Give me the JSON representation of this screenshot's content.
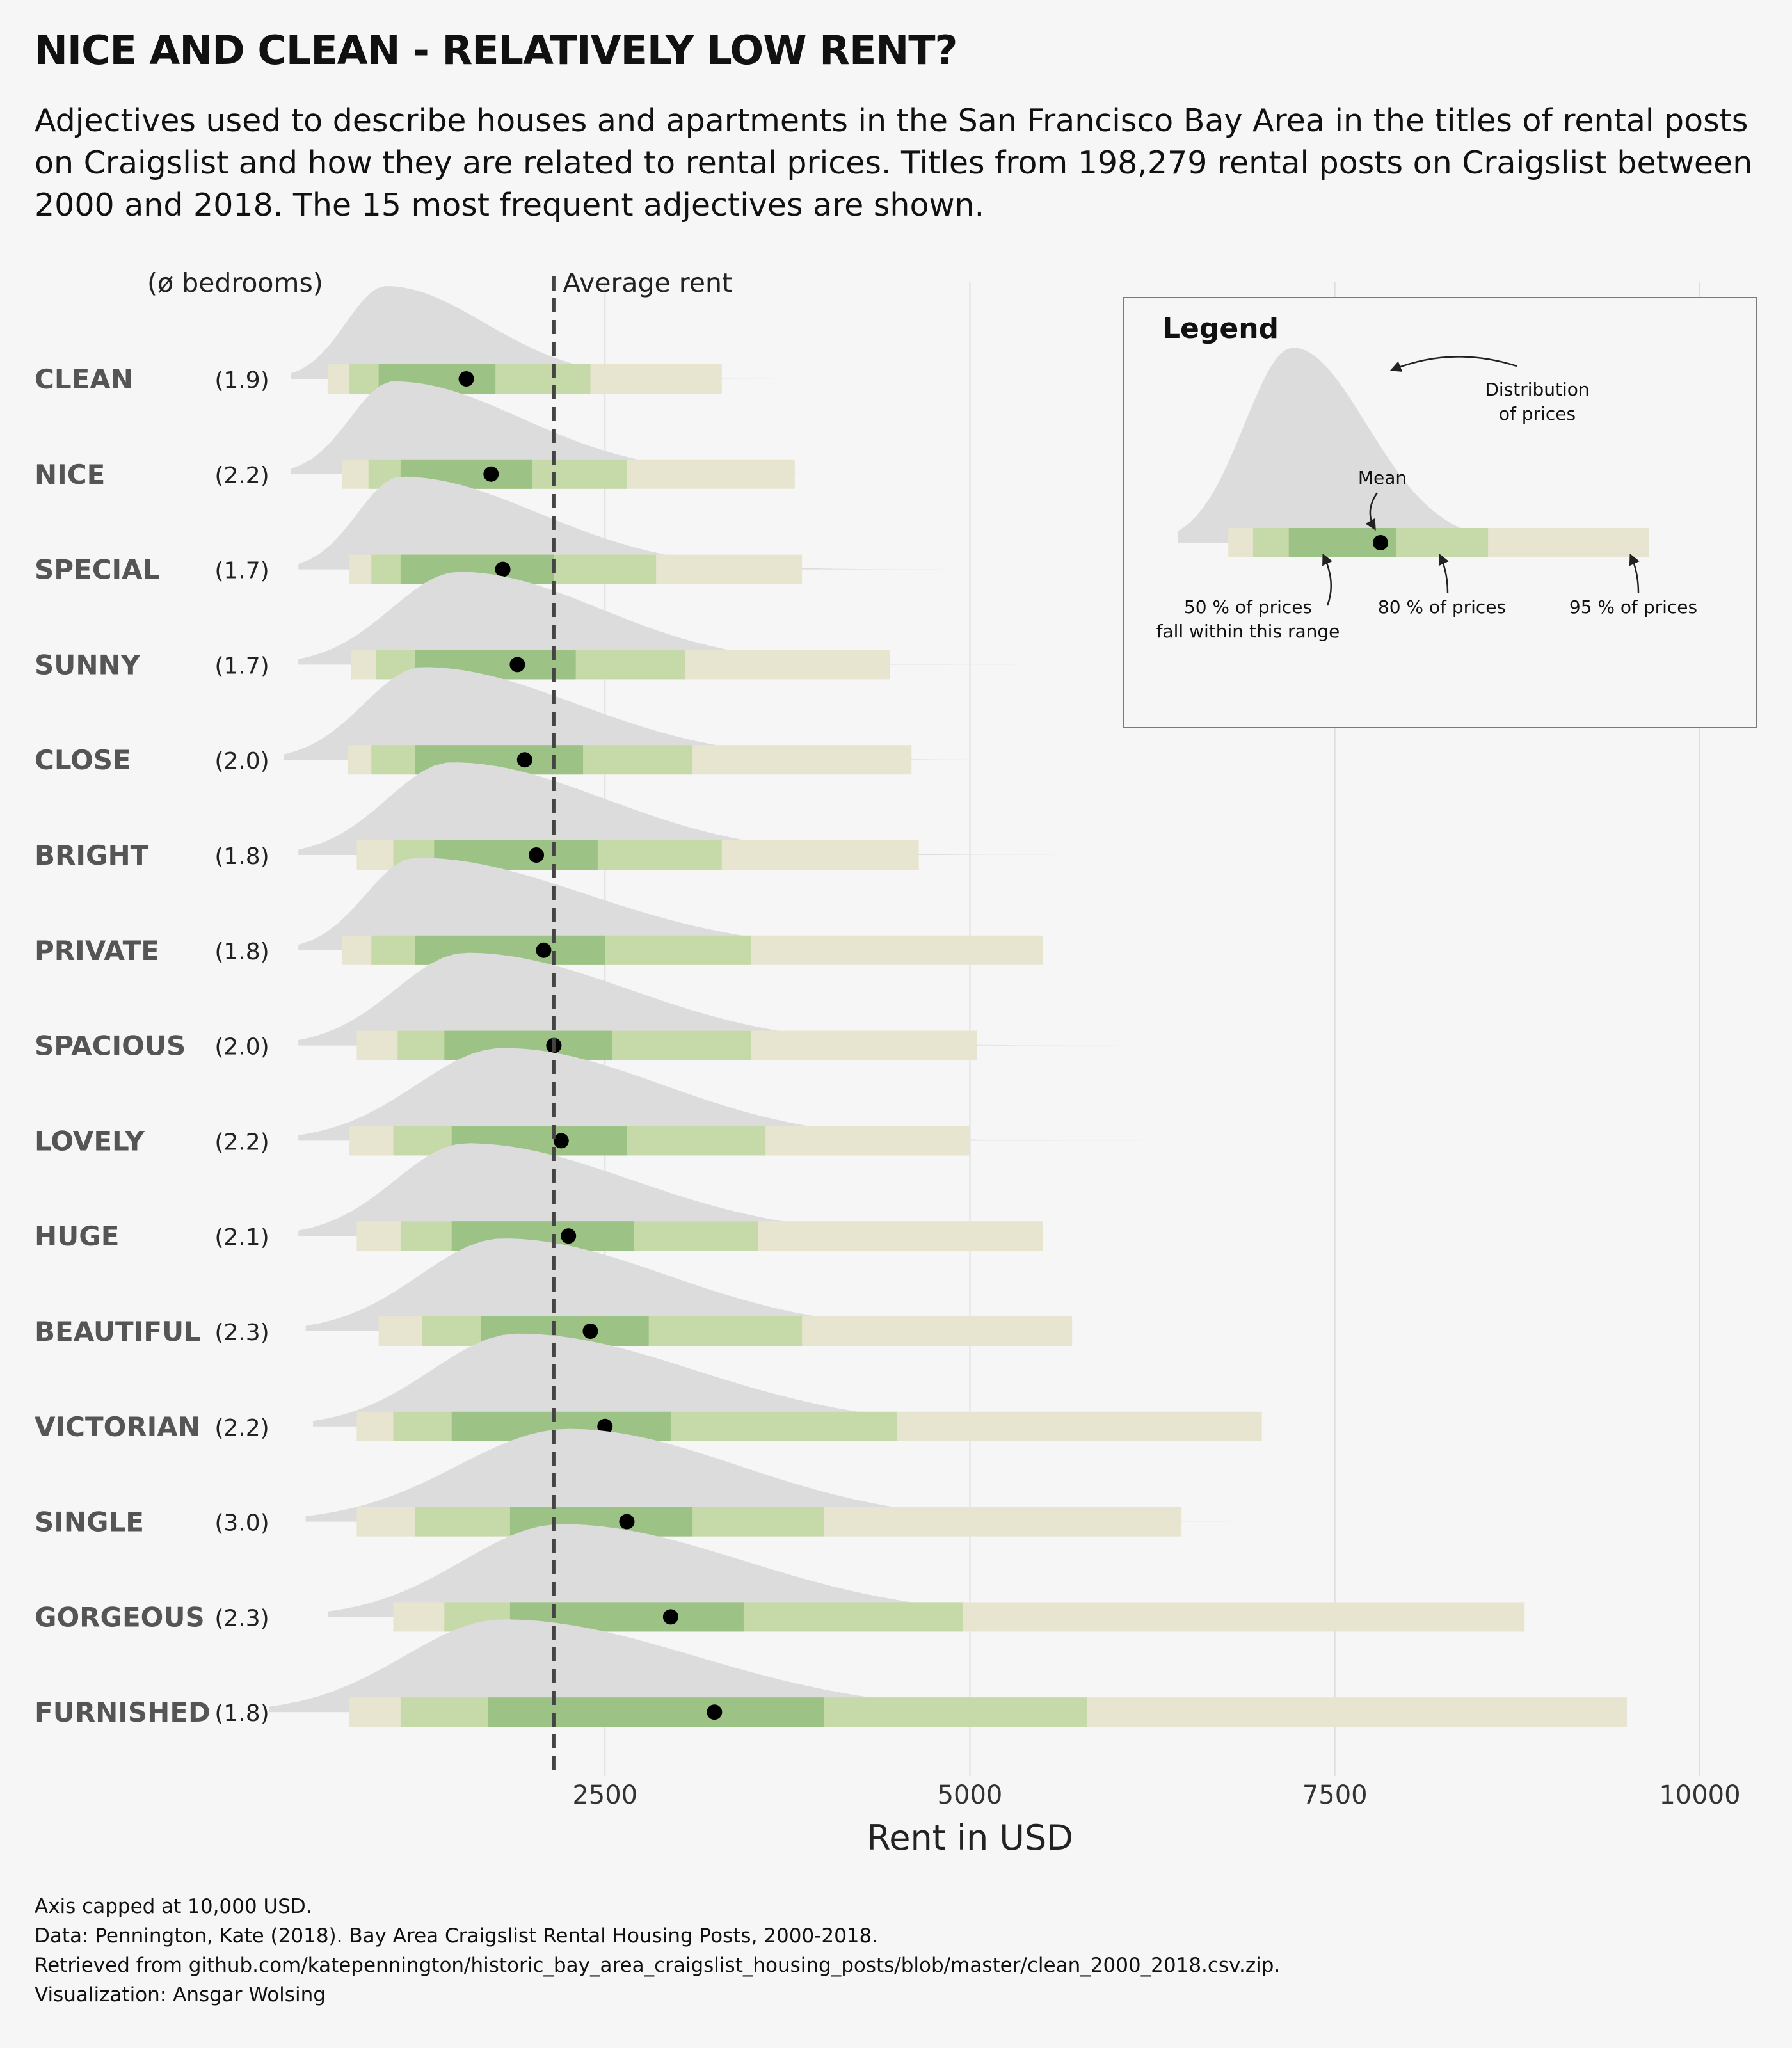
{
  "title": "NICE AND CLEAN - RELATIVELY LOW RENT?",
  "subtitle": "Adjectives used to describe houses and apartments in the San Francisco Bay Area in the titles of rental posts on Craigslist and how they are related to rental prices. Titles from 198,279 rental posts on Craigslist between 2000 and 2018. The 15 most frequent adjectives are shown.",
  "bedrooms_header": "(ø bedrooms)",
  "average_rent_label": "Average rent",
  "colors": {
    "background": "#f6f6f6",
    "density": "#dcdcdc",
    "band95": "#e7e4cf",
    "band80": "#c6d9a8",
    "band50": "#9dc285",
    "mean": "#000000",
    "grid": "#dedede",
    "category_text": "#555555"
  },
  "legend": {
    "title": "Legend",
    "distribution_label": "Distribution\nof prices",
    "mean_label": "Mean",
    "range50_label": "50 % of prices\nfall within this range",
    "range80_label": "80 % of prices",
    "range95_label": "95 % of prices"
  },
  "chart_data": {
    "type": "interval",
    "xlabel": "Rent in USD",
    "xlim": [
      0,
      10500
    ],
    "xticks": [
      2500,
      5000,
      7500,
      10000
    ],
    "xtick_labels": [
      "2500",
      "5000",
      "7500",
      "10000"
    ],
    "average_rent": 2150,
    "grid": true,
    "legend_position": "top-right",
    "rows": [
      {
        "category": "CLEAN",
        "bedrooms": "(1.9)",
        "mean": 1550,
        "q50": [
          950,
          1750
        ],
        "q80": [
          750,
          2400
        ],
        "q95": [
          600,
          3300
        ],
        "density_peak": 1000,
        "density_range": [
          350,
          5200
        ]
      },
      {
        "category": "NICE",
        "bedrooms": "(2.2)",
        "mean": 1720,
        "q50": [
          1100,
          2000
        ],
        "q80": [
          880,
          2650
        ],
        "q95": [
          700,
          3800
        ],
        "density_peak": 1050,
        "density_range": [
          350,
          6500
        ]
      },
      {
        "category": "SPECIAL",
        "bedrooms": "(1.7)",
        "mean": 1800,
        "q50": [
          1100,
          2150
        ],
        "q80": [
          900,
          2850
        ],
        "q95": [
          750,
          3850
        ],
        "density_peak": 1100,
        "density_range": [
          400,
          7000
        ]
      },
      {
        "category": "SUNNY",
        "bedrooms": "(1.7)",
        "mean": 1900,
        "q50": [
          1200,
          2300
        ],
        "q80": [
          930,
          3050
        ],
        "q95": [
          760,
          4450
        ],
        "density_peak": 1500,
        "density_range": [
          400,
          7500
        ]
      },
      {
        "category": "CLOSE",
        "bedrooms": "(2.0)",
        "mean": 1950,
        "q50": [
          1200,
          2350
        ],
        "q80": [
          900,
          3100
        ],
        "q95": [
          740,
          4600
        ],
        "density_peak": 1250,
        "density_range": [
          300,
          7800
        ]
      },
      {
        "category": "BRIGHT",
        "bedrooms": "(1.8)",
        "mean": 2030,
        "q50": [
          1330,
          2450
        ],
        "q80": [
          1050,
          3300
        ],
        "q95": [
          800,
          4650
        ],
        "density_peak": 1450,
        "density_range": [
          400,
          8000
        ]
      },
      {
        "category": "PRIVATE",
        "bedrooms": "(1.8)",
        "mean": 2080,
        "q50": [
          1200,
          2500
        ],
        "q80": [
          900,
          3500
        ],
        "q95": [
          700,
          5500
        ],
        "density_peak": 1200,
        "density_range": [
          400,
          8500
        ]
      },
      {
        "category": "SPACIOUS",
        "bedrooms": "(2.0)",
        "mean": 2150,
        "q50": [
          1400,
          2550
        ],
        "q80": [
          1080,
          3500
        ],
        "q95": [
          800,
          5050
        ],
        "density_peak": 1550,
        "density_range": [
          400,
          8500
        ]
      },
      {
        "category": "LOVELY",
        "bedrooms": "(2.2)",
        "mean": 2200,
        "q50": [
          1450,
          2650
        ],
        "q80": [
          1050,
          3600
        ],
        "q95": [
          750,
          5000
        ],
        "density_peak": 1800,
        "density_range": [
          400,
          8600
        ]
      },
      {
        "category": "HUGE",
        "bedrooms": "(2.1)",
        "mean": 2250,
        "q50": [
          1450,
          2700
        ],
        "q80": [
          1100,
          3550
        ],
        "q95": [
          800,
          5500
        ],
        "density_peak": 1550,
        "density_range": [
          400,
          8600
        ]
      },
      {
        "category": "BEAUTIFUL",
        "bedrooms": "(2.3)",
        "mean": 2400,
        "q50": [
          1650,
          2800
        ],
        "q80": [
          1250,
          3850
        ],
        "q95": [
          950,
          5700
        ],
        "density_peak": 1800,
        "density_range": [
          450,
          8800
        ]
      },
      {
        "category": "VICTORIAN",
        "bedrooms": "(2.2)",
        "mean": 2500,
        "q50": [
          1450,
          2950
        ],
        "q80": [
          1050,
          4500
        ],
        "q95": [
          800,
          7000
        ],
        "density_peak": 1900,
        "density_range": [
          500,
          9500
        ]
      },
      {
        "category": "SINGLE",
        "bedrooms": "(3.0)",
        "mean": 2650,
        "q50": [
          1850,
          3100
        ],
        "q80": [
          1200,
          4000
        ],
        "q95": [
          800,
          6450
        ],
        "density_peak": 2250,
        "density_range": [
          450,
          9500
        ]
      },
      {
        "category": "GORGEOUS",
        "bedrooms": "(2.3)",
        "mean": 2950,
        "q50": [
          1850,
          3450
        ],
        "q80": [
          1400,
          4950
        ],
        "q95": [
          1050,
          8800
        ],
        "density_peak": 2200,
        "density_range": [
          600,
          10000
        ]
      },
      {
        "category": "FURNISHED",
        "bedrooms": "(1.8)",
        "mean": 3250,
        "q50": [
          1700,
          4000
        ],
        "q80": [
          1100,
          5800
        ],
        "q95": [
          750,
          9500
        ],
        "density_peak": 1800,
        "density_range": [
          200,
          10000
        ]
      }
    ]
  },
  "caption": {
    "line1": "Axis capped at 10,000 USD.",
    "line2": "Data: Pennington, Kate (2018). Bay Area Craigslist Rental Housing Posts, 2000-2018.",
    "line3": "Retrieved from github.com/katepennington/historic_bay_area_craigslist_housing_posts/blob/master/clean_2000_2018.csv.zip.",
    "line4": "Visualization: Ansgar Wolsing"
  }
}
